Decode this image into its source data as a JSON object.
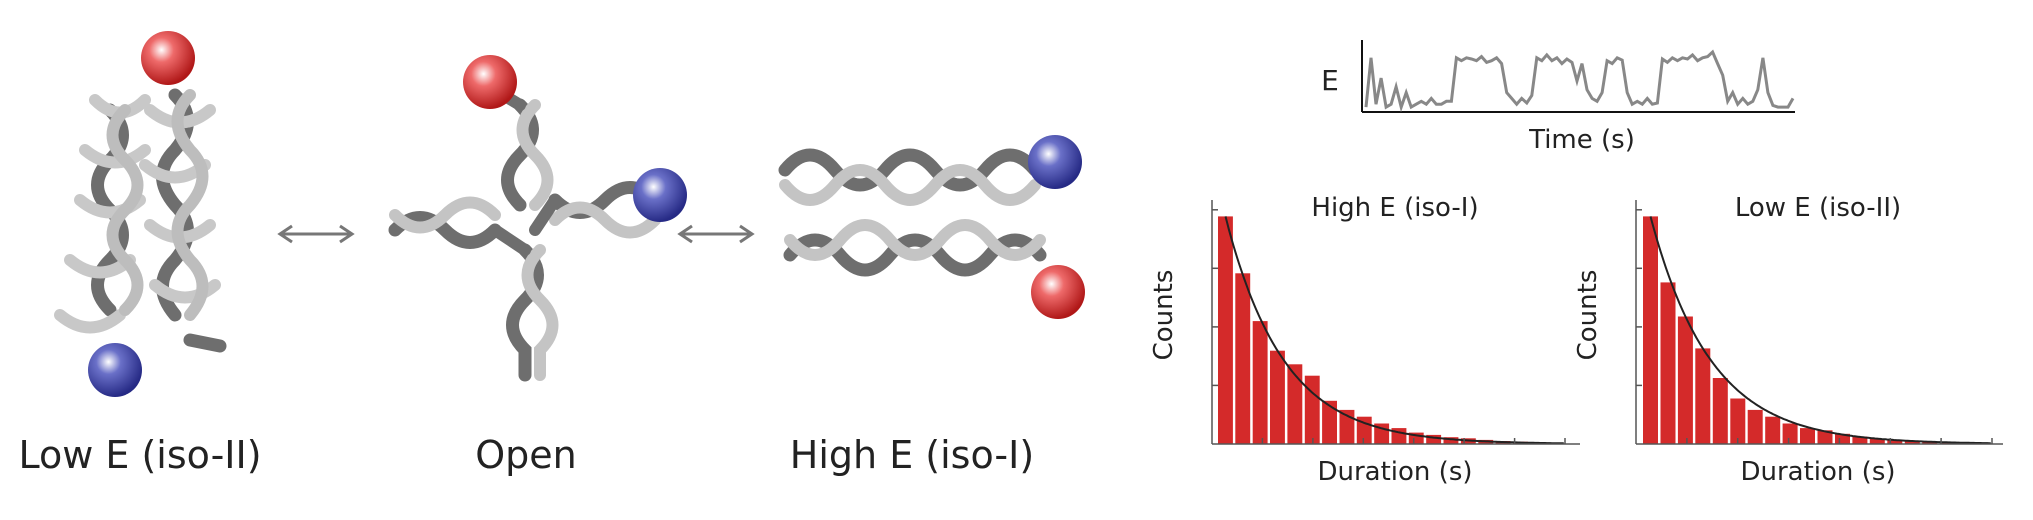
{
  "states": {
    "low_e": "Low E (iso-II)",
    "open": "Open",
    "high_e": "High E (iso-I)"
  },
  "trace": {
    "ylabel": "E",
    "xlabel": "Time (s)",
    "values": [
      0.05,
      0.9,
      0.1,
      0.55,
      0.05,
      0.1,
      0.4,
      0.05,
      0.3,
      0.05,
      0.1,
      0.15,
      0.1,
      0.2,
      0.1,
      0.1,
      0.15,
      0.15,
      0.9,
      0.85,
      0.9,
      0.88,
      0.85,
      0.92,
      0.82,
      0.85,
      0.9,
      0.8,
      0.3,
      0.2,
      0.1,
      0.2,
      0.12,
      0.25,
      0.9,
      0.85,
      0.95,
      0.85,
      0.9,
      0.8,
      0.88,
      0.82,
      0.5,
      0.8,
      0.35,
      0.2,
      0.15,
      0.3,
      0.85,
      0.8,
      0.9,
      0.86,
      0.3,
      0.1,
      0.15,
      0.1,
      0.2,
      0.1,
      0.12,
      0.88,
      0.82,
      0.9,
      0.85,
      0.9,
      0.88,
      0.95,
      0.85,
      0.9,
      0.92,
      1.0,
      0.8,
      0.6,
      0.15,
      0.3,
      0.1,
      0.2,
      0.1,
      0.15,
      0.35,
      0.9,
      0.3,
      0.08,
      0.05,
      0.05,
      0.05,
      0.2
    ],
    "colors": {
      "line": "#888888",
      "axis": "#111111"
    }
  },
  "chart_data": [
    {
      "type": "bar",
      "title": "High E (iso-I)",
      "xlabel": "Duration (s)",
      "ylabel": "Counts",
      "values": [
        1.0,
        0.75,
        0.54,
        0.41,
        0.35,
        0.3,
        0.19,
        0.15,
        0.12,
        0.09,
        0.07,
        0.05,
        0.04,
        0.03,
        0.025,
        0.018,
        0.013,
        0.01,
        0.007,
        0.005
      ],
      "ylim": [
        0,
        1.05
      ],
      "fit": "exponential decay",
      "colors": {
        "bar": "#d42a2a",
        "fit": "#222222"
      }
    },
    {
      "type": "bar",
      "title": "Low E (iso-II)",
      "xlabel": "Duration (s)",
      "ylabel": "Counts",
      "values": [
        1.0,
        0.71,
        0.56,
        0.42,
        0.29,
        0.2,
        0.15,
        0.12,
        0.09,
        0.07,
        0.06,
        0.045,
        0.033,
        0.024,
        0.017,
        0.012,
        0.008,
        0.006,
        0.004,
        0.003
      ],
      "ylim": [
        0,
        1.05
      ],
      "fit": "exponential decay",
      "colors": {
        "bar": "#d42a2a",
        "fit": "#222222"
      }
    }
  ],
  "colors": {
    "donor": "#3a3f9e",
    "acceptor": "#d42a2a",
    "strand_dark": "#6e6e6e",
    "strand_light": "#c8c8c8",
    "arrow": "#777777"
  }
}
